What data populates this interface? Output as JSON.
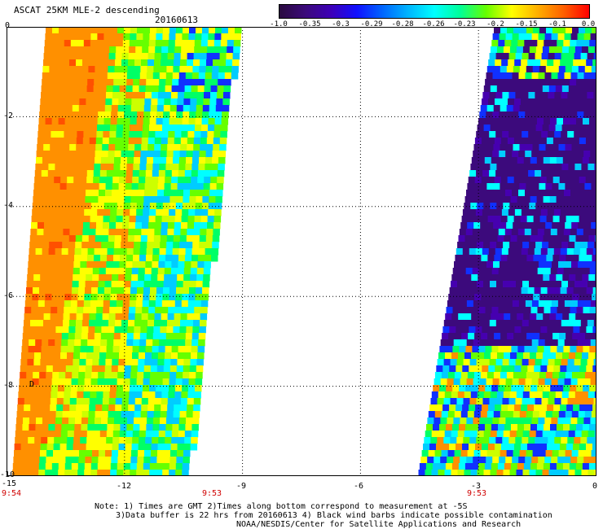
{
  "header": {
    "title": "ASCAT 25KM MLE-2 descending",
    "date": "20160613"
  },
  "colorbar": {
    "labels": [
      "-1.0",
      "-0.35",
      "-0.3",
      "-0.29",
      "-0.28",
      "-0.26",
      "-0.23",
      "-0.2",
      "-0.15",
      "-0.1",
      "0.0"
    ],
    "colors": [
      "#2a0a3f",
      "#3b0a7a",
      "#3d00b8",
      "#1010ff",
      "#0066ff",
      "#00b6ff",
      "#00ffff",
      "#00ff99",
      "#66ff00",
      "#ffff00",
      "#ffb000",
      "#ff6000",
      "#ff0000"
    ]
  },
  "axes": {
    "x_ticks": [
      "-15",
      "-12",
      "-9",
      "-6",
      "-3",
      "0"
    ],
    "y_ticks": [
      "0",
      "-2",
      "-4",
      "-6",
      "-8",
      "-10"
    ],
    "times": [
      "9:54",
      "9:53",
      "9:53"
    ]
  },
  "map": {
    "marker": "D",
    "xlim": [
      -15,
      0
    ],
    "ylim": [
      -10,
      0
    ],
    "grid": true
  },
  "notes": {
    "line1": "Note: 1) Times are GMT 2)Times along bottom correspond to measurement at -5S",
    "line2": "3)Data buffer is 22 hrs from 20160613 4) Black wind barbs indicate possible contamination",
    "line3": "NOAA/NESDIS/Center for Satellite Applications and Research"
  }
}
